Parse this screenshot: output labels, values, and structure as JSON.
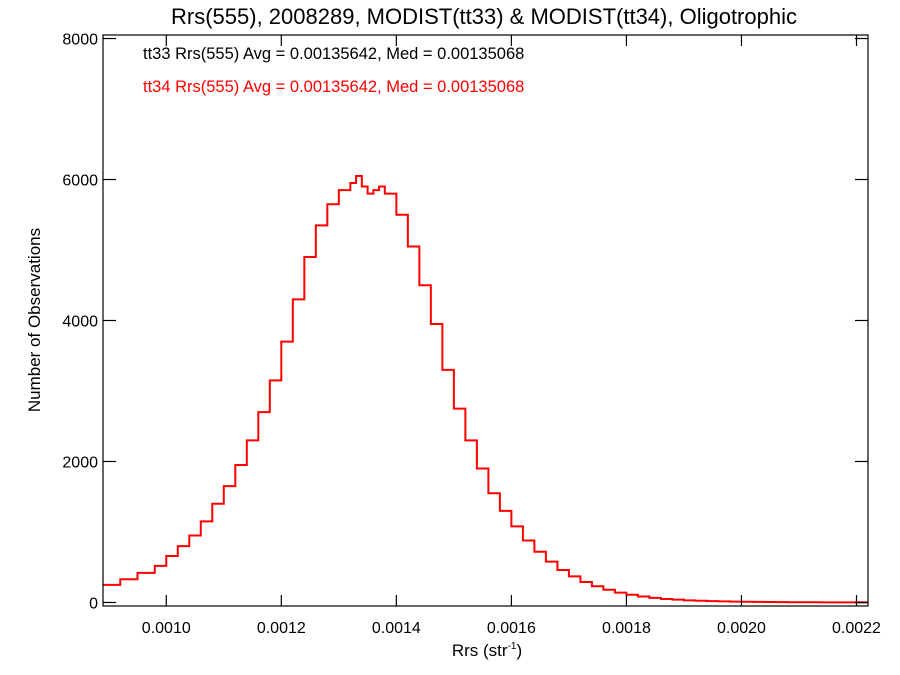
{
  "chart_data": {
    "type": "line",
    "title": "Rrs(555), 2008289, MODIST(tt33) & MODIST(tt34), Oligotrophic",
    "xlabel": "Rrs (str",
    "xlabel_sup": "-1",
    "xlabel_close": ")",
    "ylabel": "Number of Observations",
    "xlim": [
      0.00089,
      0.00222
    ],
    "ylim": [
      -50,
      8050
    ],
    "x_ticks": [
      0.001,
      0.0012,
      0.0014,
      0.0016,
      0.0018,
      0.002,
      0.0022
    ],
    "x_tick_labels": [
      "0.0010",
      "0.0012",
      "0.0014",
      "0.0016",
      "0.0018",
      "0.0020",
      "0.0022"
    ],
    "y_ticks": [
      0,
      2000,
      4000,
      6000,
      8000
    ],
    "y_tick_labels": [
      "0",
      "2000",
      "4000",
      "6000",
      "8000"
    ],
    "grid": false,
    "annotations": [
      {
        "text": "tt33 Rrs(555) Avg = 0.00135642, Med = 0.00135068",
        "color": "#000000"
      },
      {
        "text": "tt34 Rrs(555) Avg = 0.00135642, Med = 0.00135068",
        "color": "#ff0000"
      }
    ],
    "series": [
      {
        "color": "#ff0000",
        "step": true,
        "x": [
          0.00089,
          0.00092,
          0.00095,
          0.00098,
          0.001,
          0.00102,
          0.00104,
          0.00106,
          0.00108,
          0.0011,
          0.00112,
          0.00114,
          0.00116,
          0.00118,
          0.0012,
          0.00122,
          0.00124,
          0.00126,
          0.00128,
          0.0013,
          0.00132,
          0.00133,
          0.00134,
          0.00135,
          0.00136,
          0.00137,
          0.00138,
          0.0014,
          0.00142,
          0.00144,
          0.00146,
          0.00148,
          0.0015,
          0.00152,
          0.00154,
          0.00156,
          0.00158,
          0.0016,
          0.00162,
          0.00164,
          0.00166,
          0.00168,
          0.0017,
          0.00172,
          0.00174,
          0.00176,
          0.00178,
          0.0018,
          0.00182,
          0.00184,
          0.00186,
          0.00188,
          0.0019,
          0.00192,
          0.00194,
          0.00196,
          0.00198,
          0.002,
          0.00202,
          0.00204,
          0.00206,
          0.00208,
          0.0021,
          0.00212,
          0.00214,
          0.00216,
          0.00218,
          0.0022,
          0.00222
        ],
        "y": [
          250,
          330,
          420,
          520,
          660,
          800,
          950,
          1150,
          1400,
          1650,
          1950,
          2300,
          2700,
          3150,
          3700,
          4300,
          4900,
          5350,
          5650,
          5850,
          5950,
          6050,
          5900,
          5800,
          5850,
          5900,
          5800,
          5500,
          5050,
          4500,
          3950,
          3300,
          2750,
          2300,
          1900,
          1550,
          1300,
          1080,
          880,
          720,
          580,
          460,
          370,
          290,
          230,
          180,
          140,
          110,
          85,
          65,
          50,
          40,
          30,
          25,
          20,
          15,
          12,
          10,
          8,
          6,
          5,
          4,
          3,
          3,
          2,
          2,
          1,
          1,
          1
        ]
      }
    ]
  }
}
